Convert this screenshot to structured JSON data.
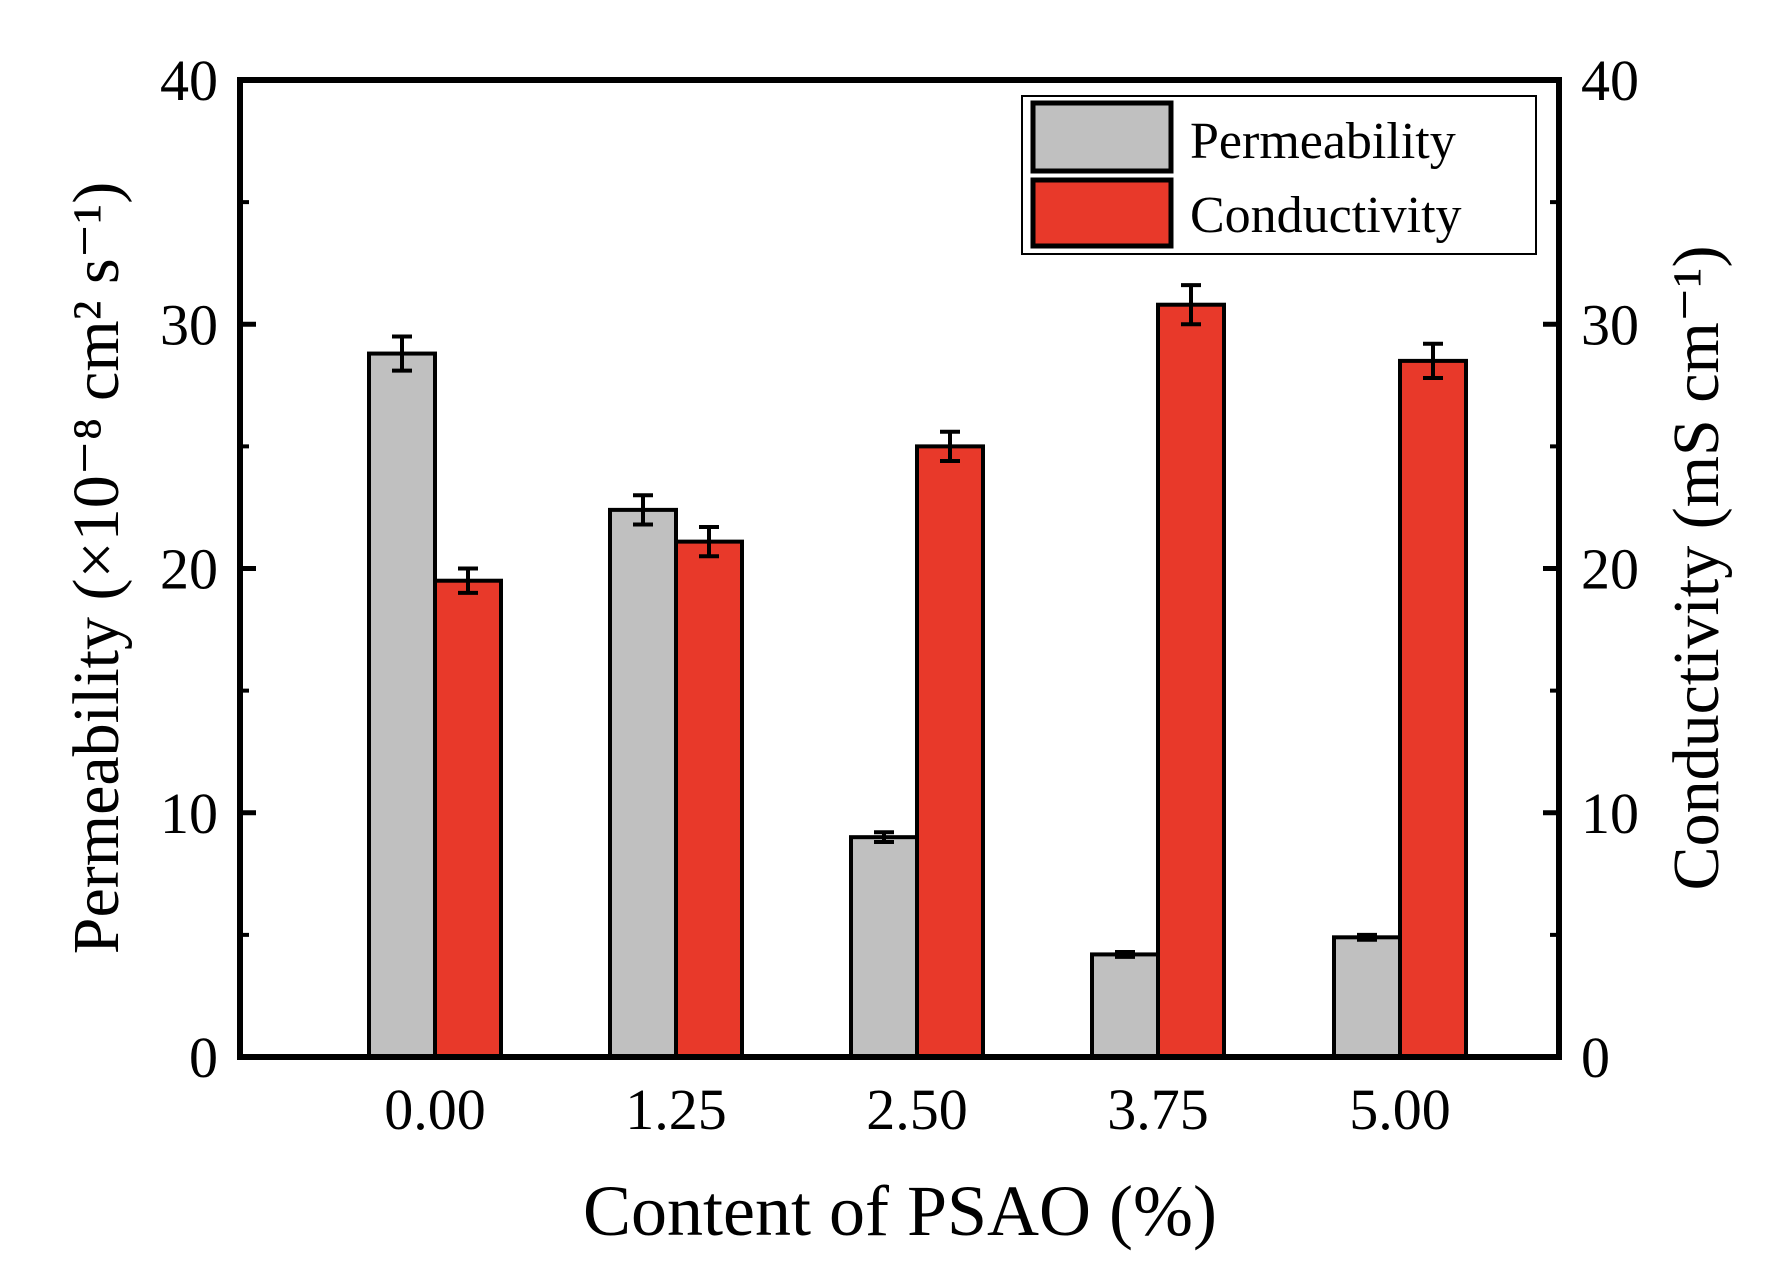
{
  "chart_data": {
    "type": "bar",
    "xlabel": "Content of PSAO (%)",
    "ylabel_left": "Permeability (×10⁻⁸ cm² s⁻¹)",
    "ylabel_right": "Conductivity (mS cm⁻¹)",
    "ylim_left": [
      0,
      40
    ],
    "ylim_right": [
      0,
      40
    ],
    "yticks_left": [
      "0",
      "10",
      "20",
      "30",
      "40"
    ],
    "yticks_right": [
      "0",
      "10",
      "20",
      "30",
      "40"
    ],
    "categories": [
      "0.00",
      "1.25",
      "2.50",
      "3.75",
      "5.00"
    ],
    "grid": false,
    "legend_position": "top-right",
    "series": [
      {
        "name": "Permeability",
        "axis": "left",
        "color": "#c0c0c0",
        "values": [
          28.8,
          22.4,
          9.0,
          4.2,
          4.9
        ],
        "errors": [
          0.7,
          0.6,
          0.2,
          0.1,
          0.1
        ]
      },
      {
        "name": "Conductivity",
        "axis": "right",
        "color": "#e8392a",
        "values": [
          19.5,
          21.1,
          25.0,
          30.8,
          28.5
        ],
        "errors": [
          0.5,
          0.6,
          0.6,
          0.8,
          0.7
        ]
      }
    ]
  }
}
